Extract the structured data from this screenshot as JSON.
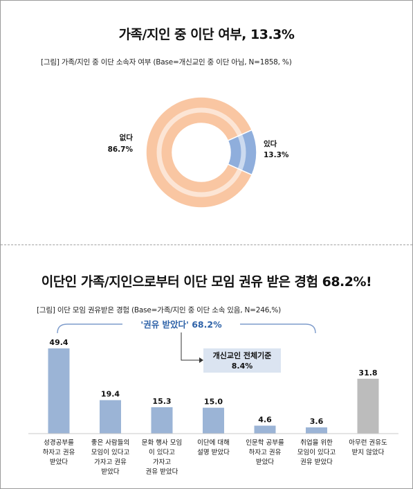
{
  "section1": {
    "title": "가족/지인 중 이단 여부, 13.3%",
    "subtitle": "[그림] 가족/지인 중 이단 소속자 여부 (Base=개신교인 중 이단 아님, N=1858, %)"
  },
  "section2": {
    "title": "이단인 가족/지인으로부터 이단 모임 권유 받은 경험 68.2%!",
    "subtitle": "[그림] 이단 모임 권유받은 경험 (Base=가족/지인 중 이단 소속 있음, N=246,%)",
    "bracket_label": "'권유 받았다' 68.2%",
    "callout_line1": "개신교인 전체기준",
    "callout_line2": "8.4%"
  },
  "chart_data": [
    {
      "type": "pie",
      "slices": [
        {
          "label": "없다",
          "value": 86.7,
          "value_label": "86.7%",
          "color": "#f9c6a2"
        },
        {
          "label": "있다",
          "value": 13.3,
          "value_label": "13.3%",
          "color": "#8faedc"
        }
      ]
    },
    {
      "type": "bar",
      "categories": [
        [
          "성경공부를",
          "하자고 권유",
          "받았다"
        ],
        [
          "좋은 사람들의",
          "모임이 있다고",
          "가자고 권유",
          "받았다"
        ],
        [
          "문화 행사 모임",
          "이 있다고",
          "가자고",
          "권유 받았다"
        ],
        [
          "이단에 대해",
          "설명 받았다"
        ],
        [
          "인문학 공부를",
          "하자고 권유",
          "받았다"
        ],
        [
          "취업을 위한",
          "모임이 있다고",
          "권유 받았다"
        ],
        [
          "아무런 권유도",
          "받지 않았다"
        ]
      ],
      "values": [
        49.4,
        19.4,
        15.3,
        15.0,
        4.6,
        3.6,
        31.8
      ],
      "value_labels": [
        "49.4",
        "19.4",
        "15.3",
        "15.0",
        "4.6",
        "3.6",
        "31.8"
      ],
      "colors": [
        "#9bb4d6",
        "#9bb4d6",
        "#9bb4d6",
        "#9bb4d6",
        "#9bb4d6",
        "#9bb4d6",
        "#bcbcbc"
      ],
      "ylim": [
        0,
        60
      ]
    }
  ]
}
